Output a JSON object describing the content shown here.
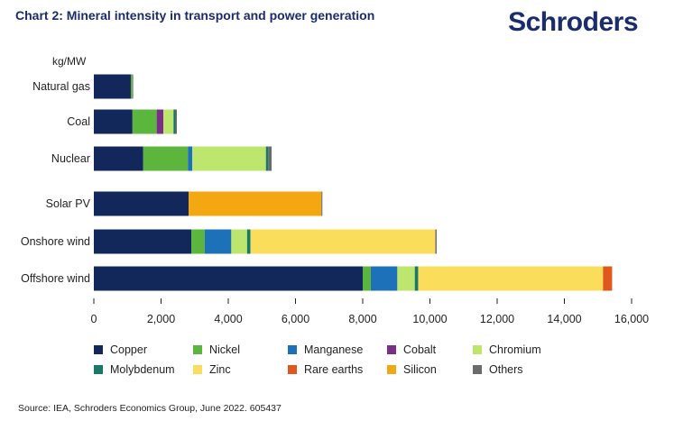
{
  "header": {
    "title": "Chart 2: Mineral intensity in transport and power generation",
    "brand": "Schroders"
  },
  "footer": {
    "source": "Source: IEA, Schroders Economics Group, June 2022. 605437"
  },
  "colors": {
    "Copper": "#13285a",
    "Nickel": "#5cb53c",
    "Manganese": "#1c71b8",
    "Cobalt": "#7b2e88",
    "Chromium": "#bde66e",
    "Molybdenum": "#177a67",
    "Zinc": "#fbdd5c",
    "Rare earths": "#e0581e",
    "Silicon": "#f3a710",
    "Others": "#6b6b6b"
  },
  "chart_data": {
    "type": "bar",
    "orientation": "horizontal",
    "stacked": true,
    "title": "Chart 2: Mineral intensity in transport and power generation",
    "ylabel": "kg/MW",
    "xlim": [
      0,
      16000
    ],
    "xticks": [
      0,
      2000,
      4000,
      6000,
      8000,
      10000,
      12000,
      14000,
      16000
    ],
    "xtick_labels": [
      "0",
      "2,000",
      "4,000",
      "6,000",
      "8,000",
      "10,000",
      "12,000",
      "14,000",
      "16,000"
    ],
    "categories": [
      "Natural gas",
      "Coal",
      "Nuclear",
      "Solar PV",
      "Onshore wind",
      "Offshore wind"
    ],
    "series": [
      {
        "name": "Copper",
        "values": [
          1100,
          1150,
          1470,
          2820,
          2900,
          8000
        ]
      },
      {
        "name": "Nickel",
        "values": [
          50,
          720,
          1330,
          0,
          400,
          240
        ]
      },
      {
        "name": "Manganese",
        "values": [
          0,
          0,
          130,
          0,
          790,
          790
        ]
      },
      {
        "name": "Cobalt",
        "values": [
          0,
          200,
          0,
          0,
          0,
          0
        ]
      },
      {
        "name": "Chromium",
        "values": [
          0,
          300,
          2190,
          0,
          470,
          520
        ]
      },
      {
        "name": "Molybdenum",
        "values": [
          0,
          60,
          70,
          0,
          100,
          100
        ]
      },
      {
        "name": "Zinc",
        "values": [
          0,
          0,
          0,
          0,
          5500,
          5500
        ]
      },
      {
        "name": "Rare earths",
        "values": [
          0,
          0,
          0,
          0,
          0,
          270
        ]
      },
      {
        "name": "Silicon",
        "values": [
          0,
          0,
          0,
          3950,
          0,
          0
        ]
      },
      {
        "name": "Others",
        "values": [
          20,
          40,
          100,
          30,
          40,
          0
        ]
      }
    ],
    "legend_position": "bottom"
  }
}
